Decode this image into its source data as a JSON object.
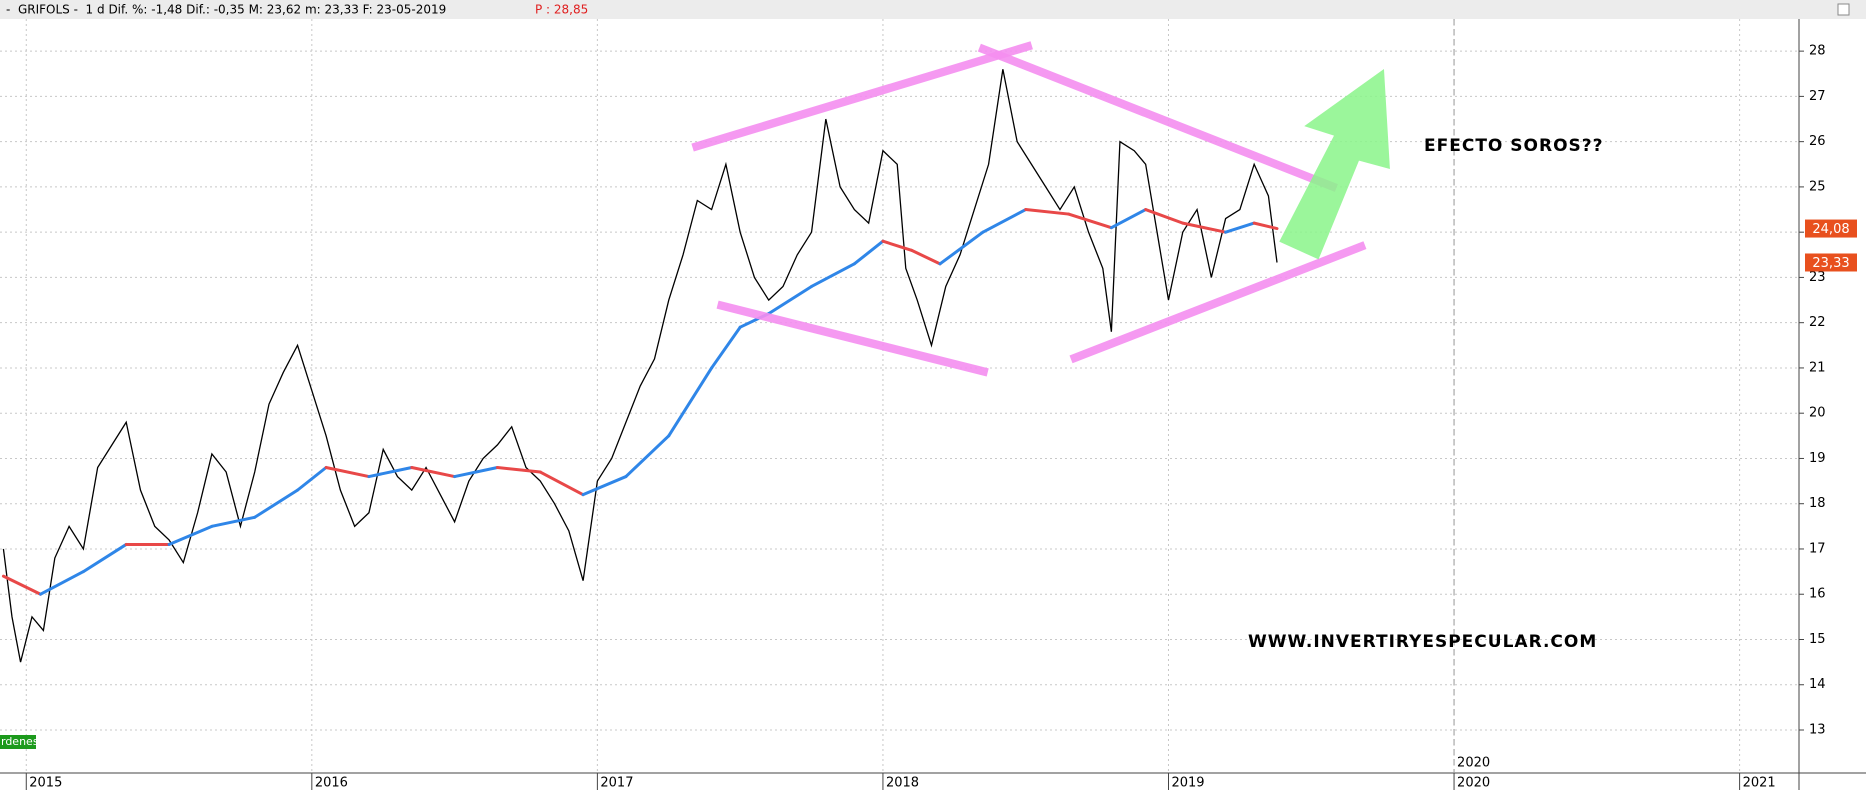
{
  "header": {
    "text": "-  GRIFOLS -  1 d Dif. %: -1,48 Dif.: -0,35 M: 23,62 m: 23,33 F: 23-05-2019",
    "price": "P : 28,85"
  },
  "orders_label": "rdenes",
  "chart_data": {
    "type": "line",
    "xlim": [
      2014.908,
      2021.208
    ],
    "xticks": [
      2015,
      2016,
      2017,
      2018,
      2019,
      2020,
      2021
    ],
    "ylim": [
      12.05,
      28.71
    ],
    "yticks": [
      13,
      14,
      15,
      16,
      17,
      18,
      19,
      20,
      21,
      22,
      23,
      24,
      25,
      26,
      27,
      28
    ],
    "grid": true,
    "markers": [
      2020
    ],
    "annotations": [
      "EFECTO SOROS??",
      "WWW.INVERTIRYESPECULAR.COM"
    ],
    "price_tags": [
      {
        "value": 24.08,
        "label": "24,08"
      },
      {
        "value": 23.33,
        "label": "23,33"
      }
    ],
    "series": [
      {
        "color": "#000000",
        "x": [
          2014.92,
          2014.95,
          2014.98,
          2015.02,
          2015.06,
          2015.1,
          2015.15,
          2015.2,
          2015.25,
          2015.3,
          2015.35,
          2015.4,
          2015.45,
          2015.5,
          2015.55,
          2015.6,
          2015.65,
          2015.7,
          2015.75,
          2015.8,
          2015.85,
          2015.9,
          2015.95,
          2016.0,
          2016.05,
          2016.1,
          2016.15,
          2016.2,
          2016.25,
          2016.3,
          2016.35,
          2016.4,
          2016.45,
          2016.5,
          2016.55,
          2016.6,
          2016.65,
          2016.7,
          2016.75,
          2016.8,
          2016.85,
          2016.9,
          2016.95,
          2017.0,
          2017.05,
          2017.1,
          2017.15,
          2017.2,
          2017.25,
          2017.3,
          2017.35,
          2017.4,
          2017.45,
          2017.5,
          2017.55,
          2017.6,
          2017.65,
          2017.7,
          2017.75,
          2017.8,
          2017.85,
          2017.9,
          2017.95,
          2018.0,
          2018.05,
          2018.08,
          2018.12,
          2018.17,
          2018.22,
          2018.27,
          2018.32,
          2018.37,
          2018.42,
          2018.47,
          2018.52,
          2018.57,
          2018.62,
          2018.67,
          2018.72,
          2018.77,
          2018.8,
          2018.83,
          2018.88,
          2018.92,
          2018.96,
          2019.0,
          2019.05,
          2019.1,
          2019.15,
          2019.2,
          2019.25,
          2019.3,
          2019.35,
          2019.38
        ],
        "values": [
          17.0,
          15.5,
          14.5,
          15.5,
          15.2,
          16.8,
          17.5,
          17.0,
          18.8,
          19.3,
          19.8,
          18.3,
          17.5,
          17.2,
          16.7,
          17.8,
          19.1,
          18.7,
          17.5,
          18.7,
          20.2,
          20.9,
          21.5,
          20.5,
          19.5,
          18.3,
          17.5,
          17.8,
          19.2,
          18.6,
          18.3,
          18.8,
          18.2,
          17.6,
          18.5,
          19.0,
          19.3,
          19.7,
          18.8,
          18.5,
          18.0,
          17.4,
          16.3,
          18.5,
          19.0,
          19.8,
          20.6,
          21.2,
          22.5,
          23.5,
          24.7,
          24.5,
          25.5,
          24.0,
          23.0,
          22.5,
          22.8,
          23.5,
          24.0,
          26.5,
          25.0,
          24.5,
          24.2,
          25.8,
          25.5,
          23.2,
          22.5,
          21.5,
          22.8,
          23.5,
          24.5,
          25.5,
          27.6,
          26.0,
          25.5,
          25.0,
          24.5,
          25.0,
          24.0,
          23.2,
          21.8,
          26.0,
          25.8,
          25.5,
          24.0,
          22.5,
          24.0,
          24.5,
          23.0,
          24.3,
          24.5,
          25.5,
          24.8,
          23.33
        ]
      },
      {
        "up_color": "#2f86e8",
        "down_color": "#e84848",
        "x": [
          2014.92,
          2015.05,
          2015.2,
          2015.35,
          2015.5,
          2015.65,
          2015.8,
          2015.95,
          2016.05,
          2016.2,
          2016.35,
          2016.5,
          2016.65,
          2016.8,
          2016.95,
          2017.1,
          2017.25,
          2017.4,
          2017.5,
          2017.6,
          2017.75,
          2017.9,
          2018.0,
          2018.1,
          2018.2,
          2018.35,
          2018.5,
          2018.65,
          2018.8,
          2018.92,
          2019.05,
          2019.2,
          2019.3,
          2019.38
        ],
        "values": [
          16.4,
          16.0,
          16.5,
          17.1,
          17.1,
          17.5,
          17.7,
          18.3,
          18.8,
          18.6,
          18.8,
          18.6,
          18.8,
          18.7,
          18.2,
          18.6,
          19.5,
          21.0,
          21.9,
          22.2,
          22.8,
          23.3,
          23.8,
          23.6,
          23.3,
          24.0,
          24.5,
          24.4,
          24.1,
          24.5,
          24.2,
          24.0,
          24.2,
          24.08
        ]
      }
    ]
  }
}
